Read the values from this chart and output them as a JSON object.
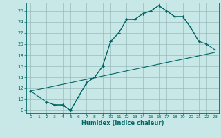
{
  "xlabel": "Humidex (Indice chaleur)",
  "bg_color": "#c8e8e8",
  "grid_color": "#99bbbb",
  "line_color": "#006666",
  "xlim": [
    -0.5,
    23.5
  ],
  "ylim": [
    7.5,
    27.5
  ],
  "xticks": [
    0,
    1,
    2,
    3,
    4,
    5,
    6,
    7,
    8,
    9,
    10,
    11,
    12,
    13,
    14,
    15,
    16,
    17,
    18,
    19,
    20,
    21,
    22,
    23
  ],
  "yticks": [
    8,
    10,
    12,
    14,
    16,
    18,
    20,
    22,
    24,
    26
  ],
  "line1_x": [
    0,
    1,
    2,
    3,
    4,
    5,
    6,
    7,
    8,
    9,
    10,
    11,
    12,
    13,
    14,
    15,
    16,
    17,
    18,
    19,
    20,
    21
  ],
  "line1_y": [
    11.5,
    10.5,
    9.5,
    9.0,
    9.0,
    8.0,
    10.5,
    13.0,
    14.0,
    16.0,
    20.5,
    22.0,
    24.5,
    24.5,
    25.5,
    26.0,
    27.0,
    26.0,
    25.0,
    25.0,
    23.0,
    20.5
  ],
  "line2_x": [
    0,
    23
  ],
  "line2_y": [
    11.5,
    18.5
  ],
  "line3_x": [
    2,
    3,
    4,
    5,
    6,
    7,
    8,
    9,
    10,
    11,
    12,
    13,
    14,
    15,
    16,
    17,
    18,
    19,
    20,
    21,
    22,
    23
  ],
  "line3_y": [
    9.5,
    9.0,
    9.0,
    8.0,
    10.5,
    13.0,
    14.0,
    16.0,
    20.5,
    22.0,
    24.5,
    24.5,
    25.5,
    26.0,
    27.0,
    26.0,
    25.0,
    25.0,
    23.0,
    20.5,
    20.0,
    19.0
  ]
}
